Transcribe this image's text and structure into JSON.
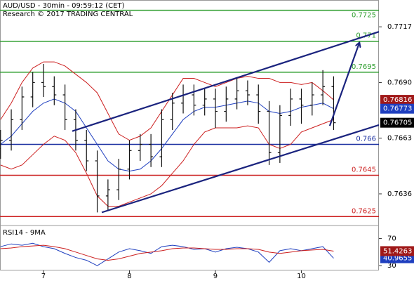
{
  "chart_data": [
    {
      "type": "ohlc",
      "title": "AUD/USD - 30min - 09:59:12 (CET)",
      "subtitle": "Research © 2017 TRADING CENTRAL",
      "xlim": [
        6.494,
        10.902
      ],
      "ylim": [
        0.7621,
        0.773
      ],
      "yticks": [
        0.7717,
        {
          "value": 0.769,
          "label": "0.7690"
        },
        0.7663,
        0.7636
      ],
      "x": [
        6.5,
        6.625,
        6.75,
        6.875,
        7.0,
        7.125,
        7.25,
        7.375,
        7.5,
        7.625,
        7.75,
        7.875,
        8.0,
        8.125,
        8.25,
        8.375,
        8.5,
        8.625,
        8.75,
        8.875,
        9.0,
        9.125,
        9.25,
        9.375,
        9.5,
        9.625,
        9.75,
        9.875,
        10.0,
        10.125,
        10.25,
        10.375
      ],
      "open": [
        0.7658,
        0.7662,
        0.7672,
        0.7683,
        0.769,
        0.7688,
        0.7684,
        0.7672,
        0.7662,
        0.7652,
        0.7635,
        0.7638,
        0.7648,
        0.7657,
        0.766,
        0.7654,
        0.7672,
        0.768,
        0.7684,
        0.7679,
        0.7682,
        0.7676,
        0.7682,
        0.7686,
        0.7684,
        0.7676,
        0.7656,
        0.7674,
        0.7682,
        0.7679,
        0.7684,
        0.7688
      ],
      "high": [
        0.7667,
        0.7677,
        0.7688,
        0.7695,
        0.7699,
        0.7693,
        0.7689,
        0.7677,
        0.7667,
        0.7657,
        0.7643,
        0.7653,
        0.7662,
        0.7665,
        0.7665,
        0.7677,
        0.7685,
        0.7689,
        0.7689,
        0.7687,
        0.7687,
        0.7688,
        0.7692,
        0.7691,
        0.7689,
        0.7681,
        0.7679,
        0.7687,
        0.7687,
        0.769,
        0.7696,
        0.7693
      ],
      "low": [
        0.7653,
        0.7657,
        0.7667,
        0.7678,
        0.7683,
        0.7679,
        0.7667,
        0.7657,
        0.7647,
        0.7627,
        0.7628,
        0.7633,
        0.7643,
        0.7652,
        0.7649,
        0.7649,
        0.7667,
        0.7675,
        0.7674,
        0.7674,
        0.7668,
        0.7671,
        0.7677,
        0.7679,
        0.767,
        0.765,
        0.7651,
        0.7669,
        0.767,
        0.7674,
        0.7679,
        0.7667
      ],
      "close": [
        0.7662,
        0.7672,
        0.7683,
        0.769,
        0.7688,
        0.7684,
        0.7672,
        0.7662,
        0.7652,
        0.7635,
        0.7638,
        0.7648,
        0.7657,
        0.766,
        0.7654,
        0.7672,
        0.768,
        0.7684,
        0.7679,
        0.7682,
        0.7676,
        0.7682,
        0.7686,
        0.7684,
        0.7676,
        0.7656,
        0.7674,
        0.7682,
        0.7679,
        0.7684,
        0.7688,
        0.76705
      ],
      "bar_color": "#111111",
      "close_tag_color": "#000000",
      "lines": [
        {
          "color": "#cc1f1f",
          "tag_color": "#a01818",
          "values": [
            0.7672,
            0.768,
            0.769,
            0.7697,
            0.77,
            0.77,
            0.7698,
            0.7694,
            0.769,
            0.7685,
            0.7675,
            0.7665,
            0.7662,
            0.7664,
            0.7668,
            0.7676,
            0.7684,
            0.7692,
            0.7692,
            0.769,
            0.7688,
            0.769,
            0.7692,
            0.7693,
            0.7692,
            0.7692,
            0.769,
            0.769,
            0.7689,
            0.769,
            0.7686,
            0.76816
          ]
        },
        {
          "color": "#1f3fbf",
          "tag_color": "#1f3fbf",
          "values": [
            0.766,
            0.7664,
            0.767,
            0.7676,
            0.768,
            0.7682,
            0.768,
            0.7676,
            0.7668,
            0.766,
            0.7652,
            0.7648,
            0.7647,
            0.7648,
            0.7652,
            0.7658,
            0.7665,
            0.7672,
            0.7676,
            0.7678,
            0.7678,
            0.7679,
            0.768,
            0.7681,
            0.768,
            0.7676,
            0.7675,
            0.7676,
            0.7678,
            0.7679,
            0.768,
            0.76773
          ]
        },
        {
          "color": "#cc1f1f",
          "values": [
            0.765,
            0.7648,
            0.765,
            0.7655,
            0.766,
            0.7664,
            0.7662,
            0.7656,
            0.7646,
            0.7635,
            0.763,
            0.763,
            0.7632,
            0.7634,
            0.7636,
            0.764,
            0.7646,
            0.7652,
            0.766,
            0.7666,
            0.7668,
            0.7668,
            0.7668,
            0.7669,
            0.7668,
            0.766,
            0.7658,
            0.766,
            0.7666,
            0.7668,
            0.767,
            0.7672
          ]
        }
      ],
      "levels": [
        {
          "value": 0.7725,
          "color": "#2e9e2e"
        },
        {
          "value": 0.771,
          "color": "#2e9e2e"
        },
        {
          "value": 0.7695,
          "color": "#2e9e2e"
        },
        {
          "value": 0.766,
          "color": "#1a2fa0"
        },
        {
          "value": 0.7645,
          "color": "#cc1f1f"
        },
        {
          "value": 0.7625,
          "color": "#cc1f1f"
        }
      ],
      "trendlines": [
        {
          "x": [
            7.335,
            10.902
          ],
          "y": [
            0.76664,
            0.77146
          ],
          "color": "#1a237e"
        },
        {
          "x": [
            7.678,
            10.902
          ],
          "y": [
            0.7627,
            0.76694
          ],
          "color": "#1a237e"
        },
        {
          "x": [
            10.33,
            10.673
          ],
          "y": [
            0.7669,
            0.77091
          ],
          "color": "#1a237e",
          "arrow": true
        }
      ]
    },
    {
      "type": "line",
      "title": "RSI14 - 9MA",
      "xlim": [
        6.494,
        10.902
      ],
      "xticks": [
        7,
        8,
        9,
        10
      ],
      "ylim": [
        23,
        88
      ],
      "yticks": [
        70,
        30
      ],
      "x": [
        6.5,
        6.625,
        6.75,
        6.875,
        7.0,
        7.125,
        7.25,
        7.375,
        7.5,
        7.625,
        7.75,
        7.875,
        8.0,
        8.125,
        8.25,
        8.375,
        8.5,
        8.625,
        8.75,
        8.875,
        9.0,
        9.125,
        9.25,
        9.375,
        9.5,
        9.625,
        9.75,
        9.875,
        10.0,
        10.125,
        10.25,
        10.375
      ],
      "series": [
        {
          "color": "#1f3fbf",
          "tag_color": "#1f3fbf",
          "values": [
            58,
            62,
            60,
            63,
            58,
            55,
            48,
            42,
            38,
            30,
            40,
            50,
            55,
            52,
            48,
            58,
            60,
            58,
            54,
            55,
            50,
            55,
            57,
            55,
            50,
            35,
            52,
            55,
            52,
            55,
            58,
            40.9655
          ]
        },
        {
          "color": "#cc1f1f",
          "tag_color": "#a01818",
          "values": [
            55,
            56,
            58,
            59,
            60,
            58,
            55,
            50,
            45,
            40,
            38,
            40,
            44,
            48,
            50,
            52,
            55,
            56,
            56,
            55,
            54,
            54,
            55,
            55,
            54,
            50,
            48,
            50,
            52,
            53,
            54,
            51.4263
          ]
        }
      ]
    }
  ]
}
